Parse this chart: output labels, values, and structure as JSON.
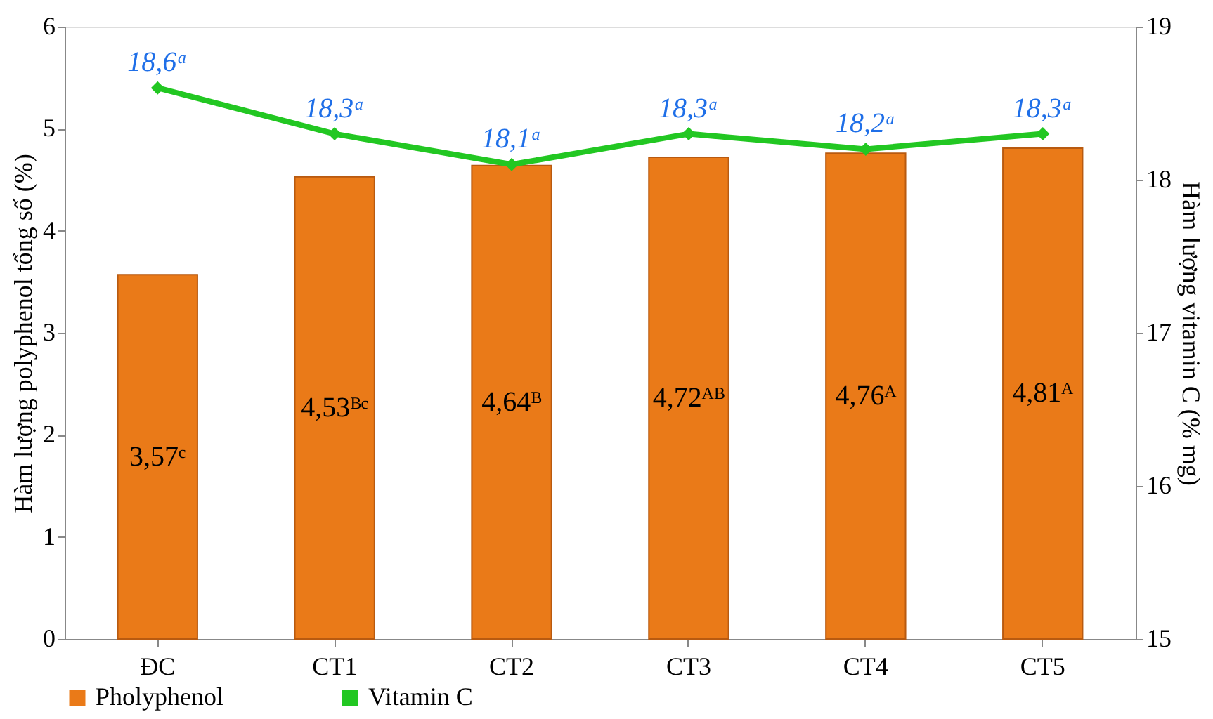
{
  "chart_data": {
    "type": "bar",
    "categories": [
      "ĐC",
      "CT1",
      "CT2",
      "CT3",
      "CT4",
      "CT5"
    ],
    "ylabel": "Hàm lượng polyphenol tổng số (%)",
    "y2label": "Hàm lượng vitamin C (% mg)",
    "ylim": [
      0,
      6
    ],
    "yticks": [
      0,
      1,
      2,
      3,
      4,
      5,
      6
    ],
    "y2lim": [
      15,
      19
    ],
    "y2ticks": [
      15,
      16,
      17,
      18,
      19
    ],
    "series": [
      {
        "name": "Pholyphenol",
        "color": "#ea7a18",
        "values": [
          3.57,
          4.53,
          4.64,
          4.72,
          4.76,
          4.81
        ],
        "value_labels": [
          "3,57ᶜ",
          "4,53ᴮᶜ",
          "4,64ᴮ",
          "4,72ᴬᴮ",
          "4,76ᴬ",
          "4,81ᴬ"
        ]
      },
      {
        "name": "Vitamin C",
        "type": "line",
        "axis": "y2",
        "color": "#22c722",
        "marker": "diamond",
        "line_style": "solid",
        "values": [
          18.6,
          18.3,
          18.1,
          18.3,
          18.2,
          18.3
        ],
        "value_labels": [
          "18,6ᵃ",
          "18,3ᵃ",
          "18,1ᵃ",
          "18,3ᵃ",
          "18,2ᵃ",
          "18,3ᵃ"
        ]
      }
    ],
    "legend": "bottom",
    "grid": false
  }
}
